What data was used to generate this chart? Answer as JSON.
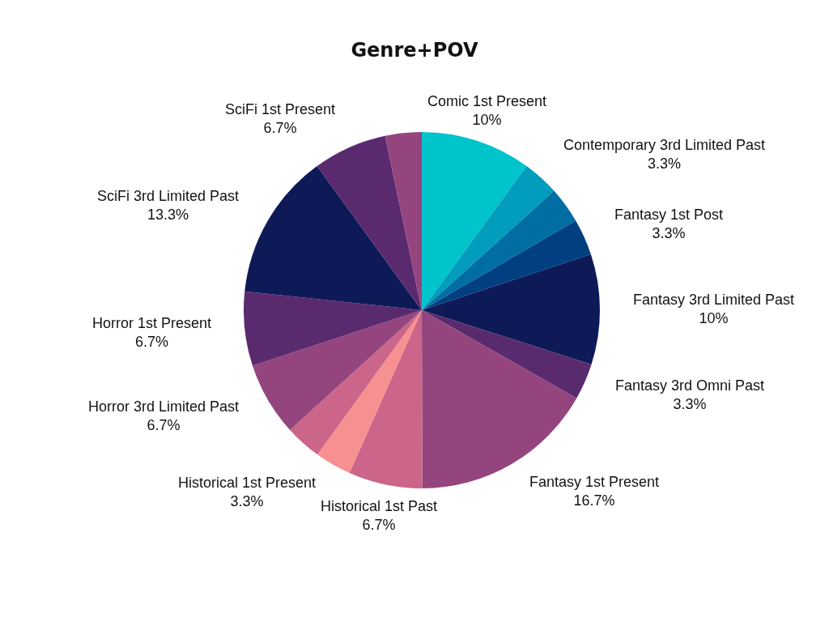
{
  "chart_data": {
    "type": "pie",
    "title": "Genre+POV",
    "categories": [
      "Comic 1st Present",
      "Contemporary 3rd Limited Past",
      null,
      "Fantasy 1st Post",
      "Fantasy 3rd Limited Past",
      "Fantasy 3rd Omni Past",
      "Fantasy 1st Present",
      "Historical 1st Past",
      "Historical 1st Present",
      null,
      "Horror 3rd Limited Past",
      "Horror 1st Present",
      "SciFi 3rd Limited Past",
      "SciFi 1st Present",
      null
    ],
    "values": [
      10,
      3.3,
      3.3,
      3.3,
      10,
      3.3,
      16.7,
      6.7,
      3.3,
      3.3,
      6.7,
      6.7,
      13.3,
      6.7,
      3.3
    ],
    "value_labels": [
      "10%",
      "3.3%",
      null,
      "3.3%",
      "10%",
      "3.3%",
      "16.7%",
      "6.7%",
      "3.3%",
      null,
      "6.7%",
      "6.7%",
      "13.3%",
      "6.7%",
      null
    ],
    "colors": [
      "#00c4cc",
      "#029cbc",
      "#006ea3",
      "#003f80",
      "#0e1a57",
      "#5a2a6e",
      "#94457e",
      "#cb6589",
      "#f79090",
      "#cb6589",
      "#94457e",
      "#5a2a6e",
      "#0e1a57",
      "#5a2a6e",
      "#94457e"
    ]
  }
}
